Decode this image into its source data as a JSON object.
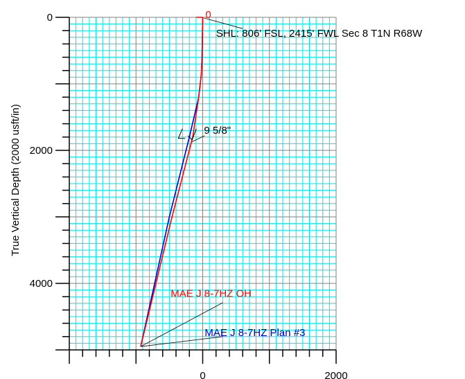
{
  "chart_data": {
    "type": "line",
    "title": "",
    "xlabel": "",
    "ylabel": "True Vertical Depth (2000 usft/in)",
    "xlim": [
      -2000,
      2000
    ],
    "ylim": [
      5000,
      0
    ],
    "y_ticks": [
      0,
      2000,
      4000
    ],
    "x_ticks": [
      0,
      2000
    ],
    "grid": true,
    "colors": {
      "grid_minor": "#00e5e5",
      "grid_major": "#808080",
      "actual": "#ff0000",
      "plan": "#0000cc",
      "axis": "#000000"
    },
    "series": [
      {
        "name": "MAE J 8-7HZ OH",
        "color": "#ff0000",
        "points": [
          [
            0,
            0
          ],
          [
            -5,
            300
          ],
          [
            -10,
            600
          ],
          [
            -20,
            850
          ],
          [
            -60,
            1200
          ],
          [
            -150,
            1800
          ],
          [
            -460,
            3000
          ],
          [
            -930,
            4950
          ]
        ]
      },
      {
        "name": "MAE J 8-7HZ Plan #3",
        "color": "#0000cc",
        "points": [
          [
            0,
            0
          ],
          [
            -5,
            300
          ],
          [
            -10,
            600
          ],
          [
            -20,
            850
          ],
          [
            -60,
            1200
          ],
          [
            -200,
            1800
          ],
          [
            -500,
            3000
          ],
          [
            -930,
            4950
          ]
        ]
      }
    ],
    "annotations": [
      {
        "text": "0",
        "color": "#ff0000",
        "x": 40,
        "y": -40
      },
      {
        "text": "SHL: 806' FSL, 2415' FWL Sec 8 T1N R68W",
        "color": "#000000",
        "x": 200,
        "y": 240
      },
      {
        "text": "9 5/8\"",
        "color": "#000000",
        "x": 20,
        "y": 1700
      },
      {
        "text": "MAE J 8-7HZ OH",
        "color": "#ff0000",
        "x": -480,
        "y": 4150
      },
      {
        "text": "MAE J 8-7HZ Plan #3",
        "color": "#0000cc",
        "x": 30,
        "y": 4740
      }
    ]
  }
}
